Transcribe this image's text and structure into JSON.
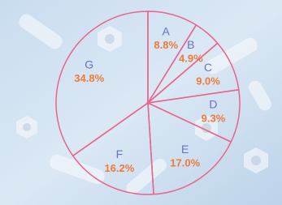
{
  "chart_data": {
    "type": "pie",
    "categories": [
      "A",
      "B",
      "C",
      "D",
      "E",
      "F",
      "G"
    ],
    "values": [
      8.8,
      4.9,
      9.0,
      9.3,
      17.0,
      16.2,
      34.8
    ],
    "value_labels": [
      "8.8%",
      "4.9%",
      "9.0%",
      "9.3%",
      "17.0%",
      "16.2%",
      "34.8%"
    ],
    "edgecolor": "#e8648c"
  }
}
